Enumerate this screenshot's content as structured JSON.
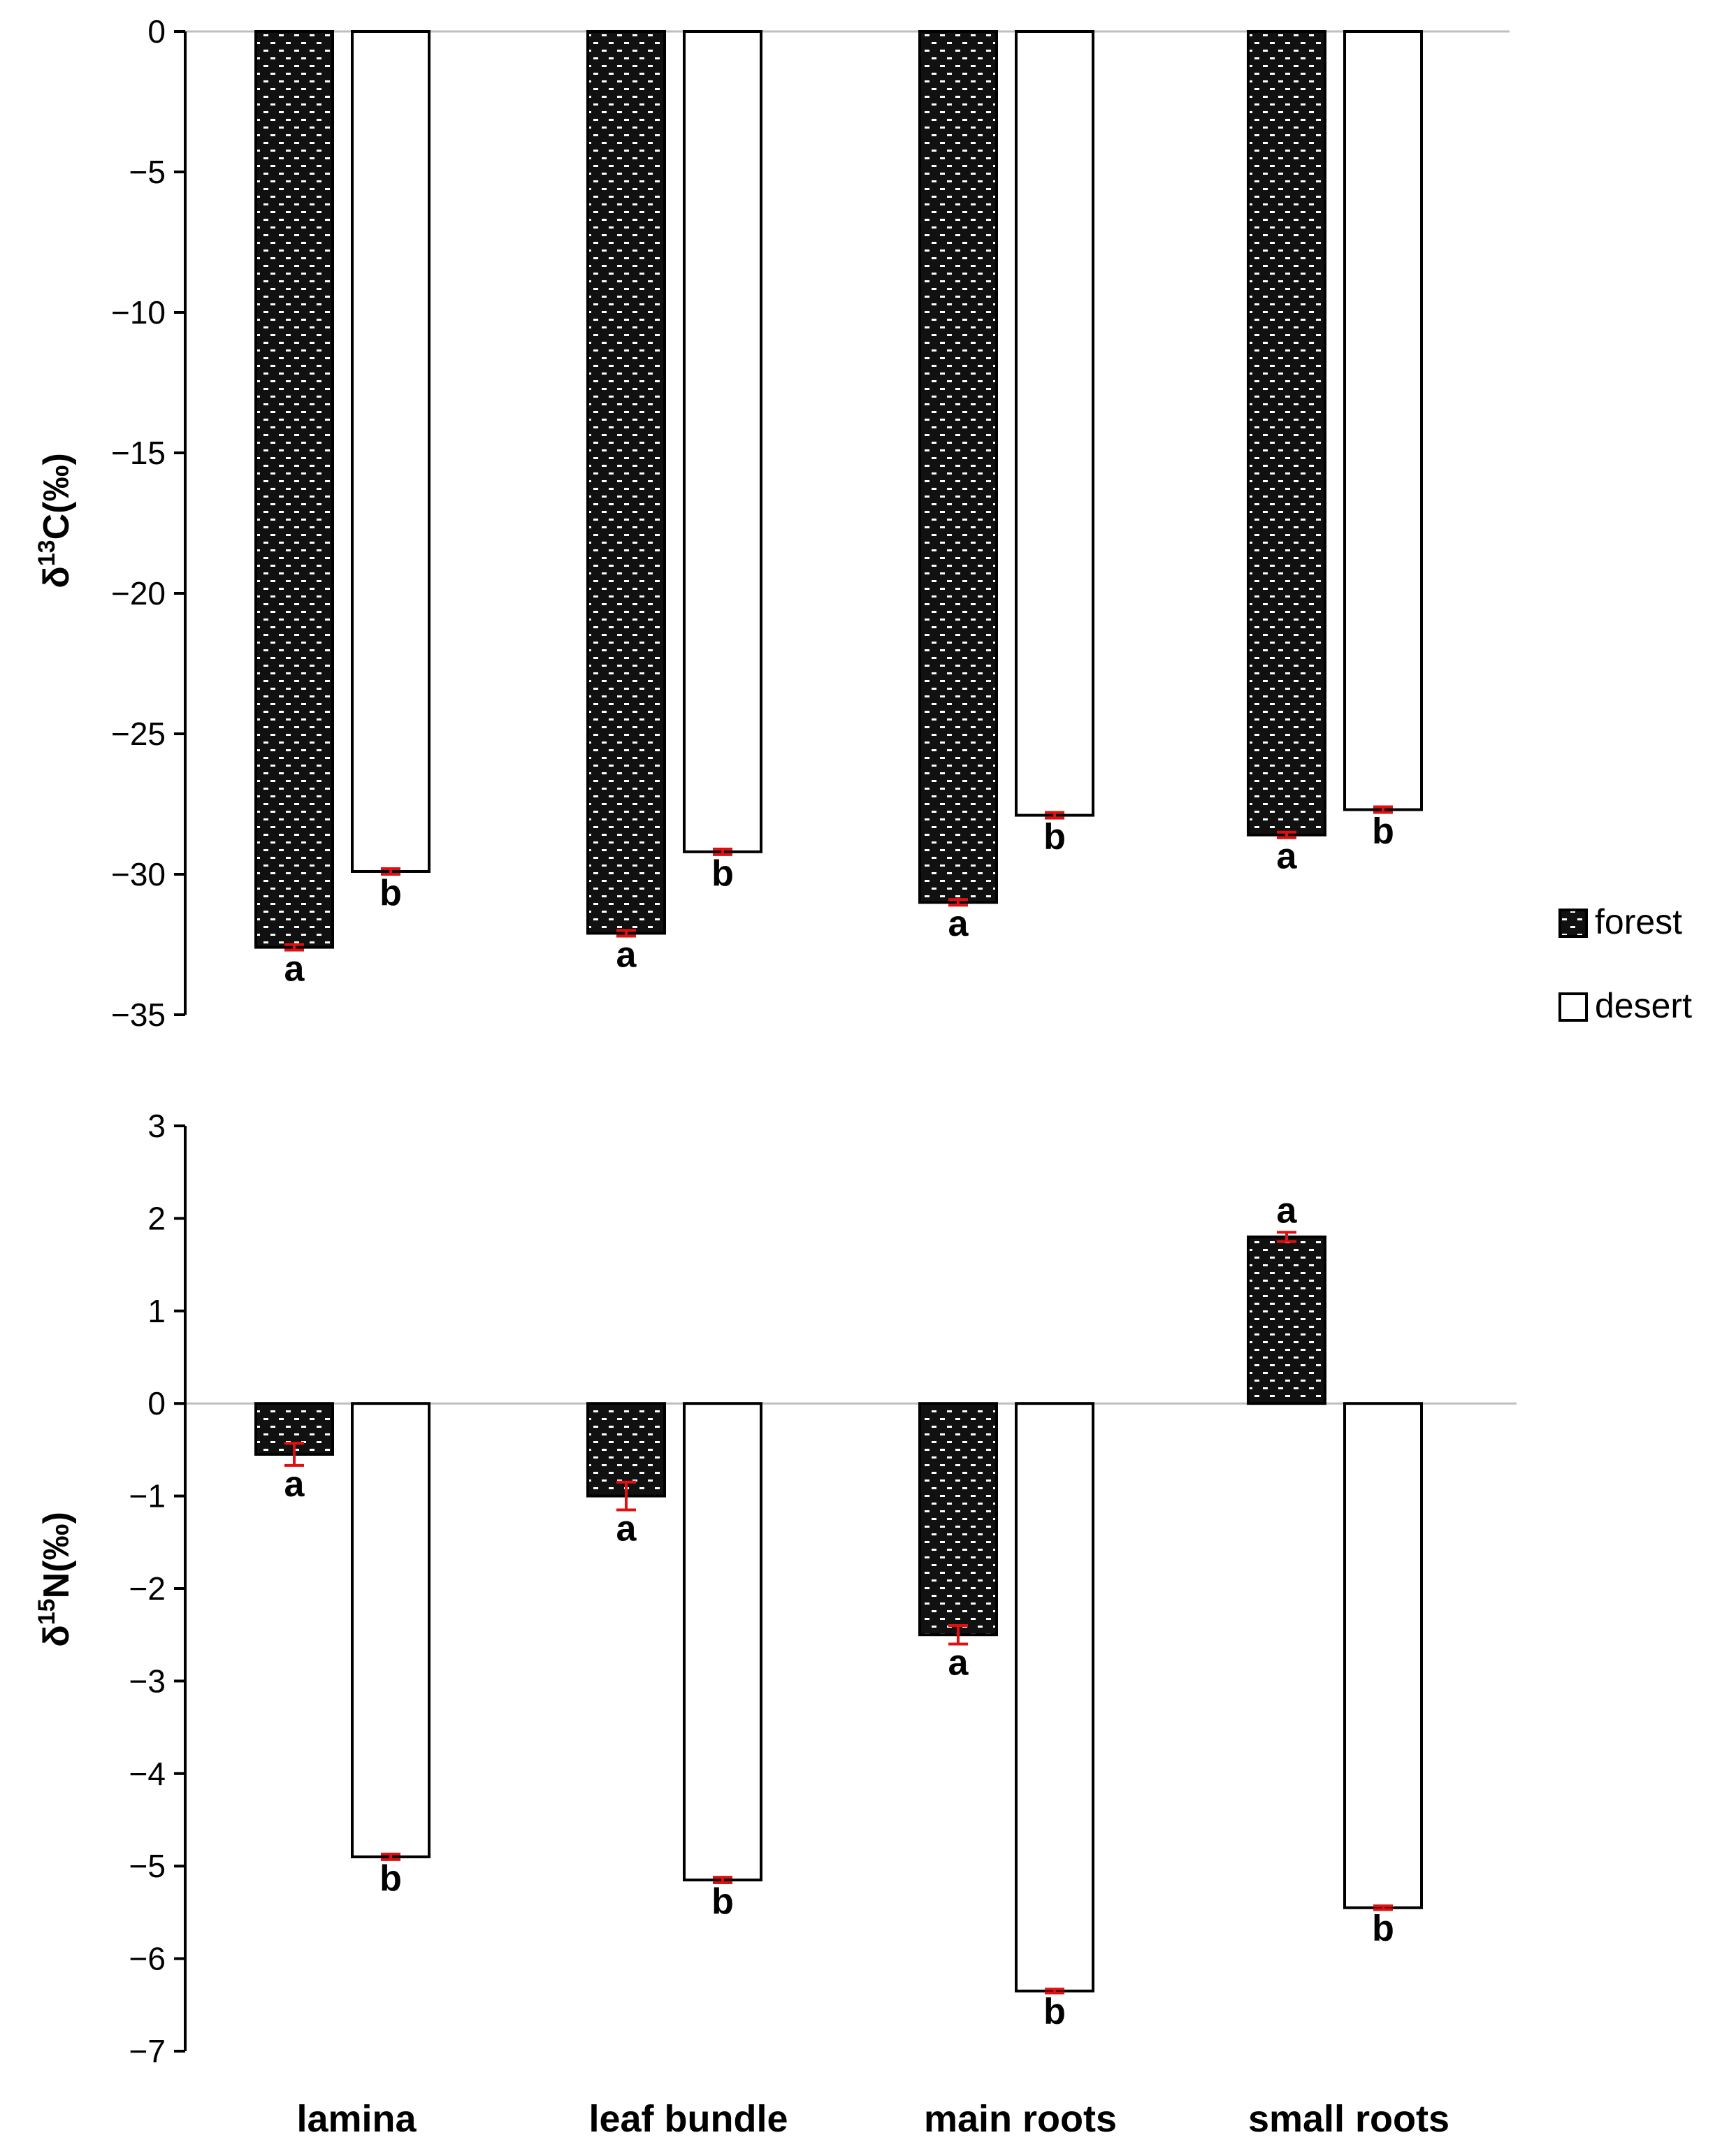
{
  "chart_data": [
    {
      "type": "bar",
      "ylabel_main": "δ",
      "ylabel_sup": "13",
      "ylabel_rest": "C(‰)",
      "ylim": [
        -35,
        0
      ],
      "yticks": [
        0,
        -5,
        -10,
        -15,
        -20,
        -25,
        -30,
        -35
      ],
      "ytick_labels": [
        "0",
        "−5",
        "−10",
        "−15",
        "−20",
        "−25",
        "−30",
        "−35"
      ],
      "categories": [
        "lamina",
        "leaf bundle",
        "main roots",
        "small roots"
      ],
      "series": [
        {
          "name": "forest",
          "values": [
            -32.6,
            -32.1,
            -31.0,
            -28.6
          ],
          "errors": [
            0.1,
            0.1,
            0.1,
            0.1
          ],
          "letters": [
            "a",
            "a",
            "a",
            "a"
          ]
        },
        {
          "name": "desert",
          "values": [
            -29.9,
            -29.2,
            -27.9,
            -27.7
          ],
          "errors": [
            0.1,
            0.1,
            0.1,
            0.1
          ],
          "letters": [
            "b",
            "b",
            "b",
            "b"
          ]
        }
      ]
    },
    {
      "type": "bar",
      "ylabel_main": "δ",
      "ylabel_sup": "15",
      "ylabel_rest": "N(‰)",
      "ylim": [
        -7,
        3
      ],
      "yticks": [
        3,
        2,
        1,
        0,
        -1,
        -2,
        -3,
        -4,
        -5,
        -6,
        -7
      ],
      "ytick_labels": [
        "3",
        "2",
        "1",
        "0",
        "−1",
        "−2",
        "−3",
        "−4",
        "−5",
        "−6",
        "−7"
      ],
      "categories": [
        "lamina",
        "leaf bundle",
        "main roots",
        "small roots"
      ],
      "series": [
        {
          "name": "forest",
          "values": [
            -0.55,
            -1.0,
            -2.5,
            1.8
          ],
          "errors": [
            0.12,
            0.15,
            0.1,
            0.05
          ],
          "letters": [
            "a",
            "a",
            "a",
            "a"
          ]
        },
        {
          "name": "desert",
          "values": [
            -4.9,
            -5.15,
            -6.35,
            -5.45
          ],
          "errors": [
            0.03,
            0.03,
            0.02,
            0.02
          ],
          "letters": [
            "b",
            "b",
            "b",
            "b"
          ]
        }
      ]
    }
  ],
  "legend": {
    "items": [
      {
        "label": "forest",
        "fill": "pattern"
      },
      {
        "label": "desert",
        "fill": "#ffffff"
      }
    ]
  },
  "colors": {
    "forest_fill": "#111111",
    "desert_fill": "#ffffff",
    "error_bar": "#e01010",
    "axis": "#000000",
    "zero_line": "#bfbfbf"
  }
}
